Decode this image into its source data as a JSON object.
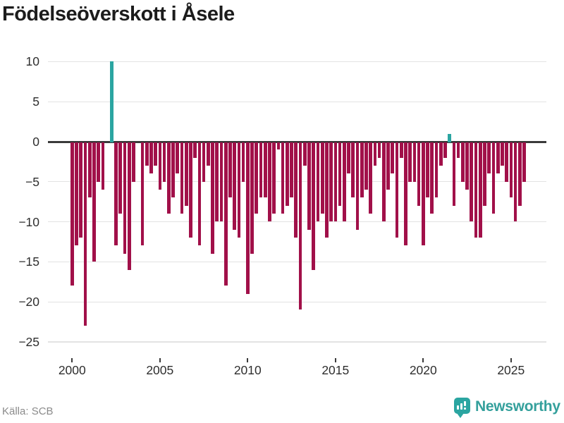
{
  "title": "Födelseöverskott i Åsele",
  "footer": {
    "source": "Källa: SCB"
  },
  "branding": {
    "name": "Newsworthy"
  },
  "colors": {
    "negative_bar": "#a11049",
    "positive_bar": "#2ba5a1",
    "zero_line": "#3a3a3a",
    "grid": "#e3e3e3",
    "brand": "#34a09c",
    "axis_text": "#2e2e2e",
    "source_text": "#8b8b8b"
  },
  "chart_data": {
    "type": "bar",
    "title": "Födelseöverskott i Åsele",
    "xlabel": "",
    "ylabel": "",
    "ylim": [
      -25.5,
      11
    ],
    "grid": true,
    "legend": "none",
    "y_ticks": [
      10,
      5,
      0,
      -5,
      -10,
      -15,
      -20,
      -25
    ],
    "y_tick_labels": [
      "10",
      "5",
      "0",
      "−5",
      "−10",
      "−15",
      "−20",
      "−25"
    ],
    "x_tick_labels": [
      "2000",
      "2005",
      "2010",
      "2015",
      "2020",
      "2025"
    ],
    "x": [
      "2000K1",
      "2000K2",
      "2000K3",
      "2000K4",
      "2001K1",
      "2001K2",
      "2001K3",
      "2001K4",
      "2002K1",
      "2002K2",
      "2002K3",
      "2002K4",
      "2003K1",
      "2003K2",
      "2003K3",
      "2003K4",
      "2004K1",
      "2004K2",
      "2004K3",
      "2004K4",
      "2005K1",
      "2005K2",
      "2005K3",
      "2005K4",
      "2006K1",
      "2006K2",
      "2006K3",
      "2006K4",
      "2007K1",
      "2007K2",
      "2007K3",
      "2007K4",
      "2008K1",
      "2008K2",
      "2008K3",
      "2008K4",
      "2009K1",
      "2009K2",
      "2009K3",
      "2009K4",
      "2010K1",
      "2010K2",
      "2010K3",
      "2010K4",
      "2011K1",
      "2011K2",
      "2011K3",
      "2011K4",
      "2012K1",
      "2012K2",
      "2012K3",
      "2012K4",
      "2013K1",
      "2013K2",
      "2013K3",
      "2013K4",
      "2014K1",
      "2014K2",
      "2014K3",
      "2014K4",
      "2015K1",
      "2015K2",
      "2015K3",
      "2015K4",
      "2016K1",
      "2016K2",
      "2016K3",
      "2016K4",
      "2017K1",
      "2017K2",
      "2017K3",
      "2017K4",
      "2018K1",
      "2018K2",
      "2018K3",
      "2018K4",
      "2019K1",
      "2019K2",
      "2019K3",
      "2019K4",
      "2020K1",
      "2020K2",
      "2020K3",
      "2020K4",
      "2021K1",
      "2021K2",
      "2021K3",
      "2021K4",
      "2022K1",
      "2022K2",
      "2022K3",
      "2022K4",
      "2023K1",
      "2023K2",
      "2023K3",
      "2023K4",
      "2024K1",
      "2024K2",
      "2024K3",
      "2024K4",
      "2025K1",
      "2025K2",
      "2025K3",
      "2025K4"
    ],
    "values": [
      -18,
      -13,
      -12,
      -23,
      -7,
      -15,
      -5,
      -6,
      0,
      10,
      -13,
      -9,
      -14,
      -16,
      -5,
      0,
      -13,
      -3,
      -4,
      -3,
      -6,
      -5,
      -9,
      -7,
      -4,
      -9,
      -8,
      -12,
      -2,
      -13,
      -5,
      -3,
      -14,
      -10,
      -10,
      -18,
      -7,
      -11,
      -12,
      -5,
      -19,
      -14,
      -9,
      -7,
      -7,
      -10,
      -9,
      -1,
      -9,
      -8,
      -7,
      -12,
      -21,
      -3,
      -11,
      -16,
      -10,
      -9,
      -12,
      -10,
      -10,
      -8,
      -10,
      -4,
      -7,
      -11,
      -7,
      -6,
      -9,
      -3,
      -2,
      -10,
      -6,
      -4,
      -12,
      -2,
      -13,
      -5,
      -5,
      -8,
      -13,
      -7,
      -9,
      -7,
      -3,
      -2,
      1,
      -8,
      -2,
      -5,
      -6,
      -10,
      -12,
      -12,
      -8,
      -4,
      -9,
      -4,
      -3,
      -5,
      -7,
      -10,
      -8,
      -5
    ]
  }
}
